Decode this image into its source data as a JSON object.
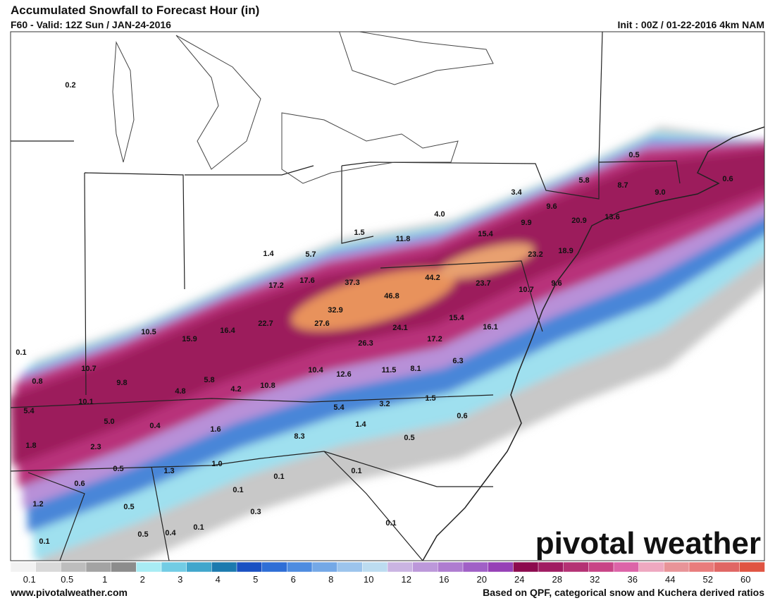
{
  "header": {
    "title": "Accumulated Snowfall to Forecast Hour (in)",
    "subtitle": "F60 - Valid: 12Z Sun / JAN-24-2016",
    "init": "Init : 00Z / 01-22-2016 4km NAM"
  },
  "map": {
    "labels": [
      "0.2",
      "1.5",
      "11.8",
      "4.0",
      "3.4",
      "5.8",
      "8.7",
      "9.0",
      "0.5",
      "0.6",
      "9.6",
      "13.6",
      "20.9",
      "9.9",
      "15.4",
      "23.2",
      "18.9",
      "1.4",
      "5.7",
      "17.2",
      "17.6",
      "37.3",
      "44.2",
      "46.8",
      "23.7",
      "10.7",
      "9.6",
      "32.9",
      "27.6",
      "22.7",
      "16.4",
      "15.9",
      "10.5",
      "24.1",
      "15.4",
      "16.1",
      "17.2",
      "26.3",
      "10.4",
      "12.6",
      "11.5",
      "8.1",
      "6.3",
      "0.1",
      "10.7",
      "0.8",
      "9.8",
      "5.8",
      "10.8",
      "4.2",
      "4.8",
      "1.5",
      "5.4",
      "10.1",
      "5.4",
      "3.2",
      "5.0",
      "0.4",
      "1.6",
      "0.6",
      "1.4",
      "1.8",
      "2.3",
      "8.3",
      "0.5",
      "1.0",
      "0.5",
      "1.3",
      "0.1",
      "0.6",
      "0.1",
      "0.1",
      "1.2",
      "0.5",
      "0.3",
      "0.1",
      "0.4",
      "0.5",
      "0.1",
      "0.1"
    ]
  },
  "logo": "pivotal weather",
  "colorbar": {
    "colors": [
      "#f2f2f2",
      "#d9d9d9",
      "#bdbdbd",
      "#a3a3a3",
      "#8c8c8c",
      "#a8ecf4",
      "#72cce4",
      "#40a6cc",
      "#1c7aae",
      "#1a50c2",
      "#2e6ed6",
      "#4e8ce0",
      "#74a8e6",
      "#9cc4ec",
      "#bcdcf0",
      "#cab4e2",
      "#bc98da",
      "#ae7cd0",
      "#a060c6",
      "#9640b6",
      "#8c0a4e",
      "#a01c62",
      "#b43274",
      "#c84486",
      "#dc64a8",
      "#eea8c0",
      "#e89498",
      "#e87c7c",
      "#e06664",
      "#e05442"
    ],
    "labels": [
      "0.1",
      "0.5",
      "1",
      "2",
      "3",
      "4",
      "5",
      "6",
      "8",
      "10",
      "12",
      "16",
      "20",
      "24",
      "28",
      "32",
      "36",
      "44",
      "52",
      "60"
    ]
  },
  "footer": {
    "url": "www.pivotalweather.com",
    "note": "Based on QPF, categorical snow and Kuchera derived ratios"
  }
}
